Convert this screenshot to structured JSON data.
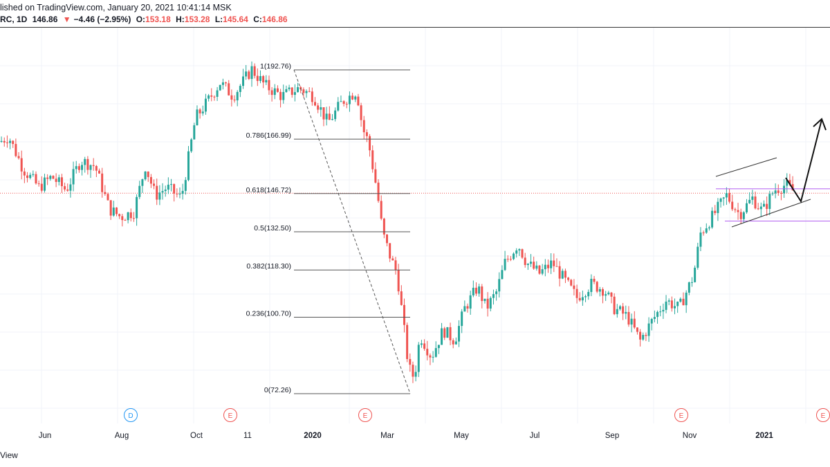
{
  "header": {
    "published_line": "lished on TradingView.com, January 20, 2021 10:41:14 MSK",
    "symbol": "RC, 1D",
    "last": "146.86",
    "change_arrow": "▼",
    "change": "−4.46 (−2.95%)",
    "o_label": "O:",
    "o_value": "153.18",
    "h_label": "H:",
    "h_value": "153.28",
    "l_label": "L:",
    "l_value": "145.64",
    "c_label": "C:",
    "c_value": "146.86"
  },
  "footer": {
    "label": "View"
  },
  "colors": {
    "up": "#26a69a",
    "down": "#ef5350",
    "fib_line": "#555555",
    "purple": "#b05cf0",
    "current_price": "#ef5350"
  },
  "chart_data": {
    "type": "candlestick",
    "title": "",
    "xlabel": "",
    "ylabel": "",
    "x_tick_labels": [
      "Jun",
      "Aug",
      "Oct",
      "11",
      "2020",
      "Mar",
      "May",
      "Jul",
      "Sep",
      "Nov",
      "2021"
    ],
    "event_markers": [
      "D",
      "E",
      "E",
      "E",
      "E"
    ],
    "fib_levels": [
      {
        "label": "1(192.76)",
        "ratio": 1,
        "price": 192.76
      },
      {
        "label": "0.786(166.99)",
        "ratio": 0.786,
        "price": 166.99
      },
      {
        "label": "0.618(146.72)",
        "ratio": 0.618,
        "price": 146.72
      },
      {
        "label": "0.5(132.50)",
        "ratio": 0.5,
        "price": 132.5
      },
      {
        "label": "0.382(118.30)",
        "ratio": 0.382,
        "price": 118.3
      },
      {
        "label": "0.236(100.70)",
        "ratio": 0.236,
        "price": 100.7
      },
      {
        "label": "0(72.26)",
        "ratio": 0,
        "price": 72.26
      }
    ],
    "current_price": 146.86,
    "channel_box": {
      "top_price": 148.5,
      "bottom_price": 136.5
    },
    "grid": true,
    "series_path": [
      [
        0,
        166
      ],
      [
        0.6,
        168
      ],
      [
        1.6,
        156
      ],
      [
        2.7,
        149
      ],
      [
        3.6,
        153
      ],
      [
        4.6,
        148
      ],
      [
        5.6,
        159
      ],
      [
        6.6,
        157
      ],
      [
        7.6,
        141
      ],
      [
        8.4,
        138
      ],
      [
        9.3,
        140
      ],
      [
        10.1,
        157
      ],
      [
        10.8,
        146
      ],
      [
        11.6,
        149
      ],
      [
        12.6,
        145
      ],
      [
        13.6,
        175
      ],
      [
        14.3,
        180
      ],
      [
        15.3,
        188
      ],
      [
        16.2,
        183
      ],
      [
        17.5,
        193
      ],
      [
        18.4,
        187
      ],
      [
        19.6,
        183
      ],
      [
        20.8,
        186
      ],
      [
        21.8,
        183
      ],
      [
        22.8,
        173
      ],
      [
        23.8,
        181
      ],
      [
        24.8,
        185
      ],
      [
        25.2,
        171
      ],
      [
        25.6,
        166
      ],
      [
        26.2,
        148
      ],
      [
        26.6,
        132
      ],
      [
        27.2,
        122
      ],
      [
        27.6,
        117
      ],
      [
        28.0,
        100
      ],
      [
        28.4,
        82
      ],
      [
        28.8,
        78
      ],
      [
        29.2,
        94
      ],
      [
        30.0,
        86
      ],
      [
        30.8,
        96
      ],
      [
        31.6,
        92
      ],
      [
        32.3,
        104
      ],
      [
        33.2,
        112
      ],
      [
        33.8,
        104
      ],
      [
        34.5,
        110
      ],
      [
        35.1,
        121
      ],
      [
        36.0,
        128
      ],
      [
        36.6,
        121
      ],
      [
        37.5,
        117
      ],
      [
        38.4,
        121
      ],
      [
        39.3,
        114
      ],
      [
        40.1,
        108
      ],
      [
        41.1,
        113
      ],
      [
        42.0,
        111
      ],
      [
        42.7,
        104
      ],
      [
        43.6,
        101
      ],
      [
        44.5,
        92
      ],
      [
        45.4,
        100
      ],
      [
        46.3,
        107
      ],
      [
        47.2,
        104
      ],
      [
        48.2,
        116
      ],
      [
        48.7,
        132
      ],
      [
        49.5,
        138
      ],
      [
        50.5,
        146
      ],
      [
        51.4,
        139
      ],
      [
        52.3,
        145
      ],
      [
        53.0,
        140
      ],
      [
        53.8,
        148
      ],
      [
        54.6,
        150
      ],
      [
        55.3,
        147
      ]
    ],
    "annotation_arrow": {
      "from": [
        55.3,
        145.5
      ],
      "via": [
        56.5,
        140
      ],
      "to": [
        57.6,
        171
      ]
    }
  }
}
